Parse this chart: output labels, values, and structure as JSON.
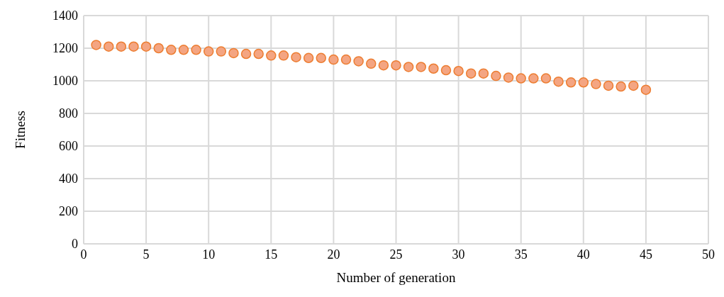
{
  "chart_data": {
    "type": "scatter",
    "xlabel": "Number of generation",
    "ylabel": "Fitness",
    "x": [
      1,
      2,
      3,
      4,
      5,
      6,
      7,
      8,
      9,
      10,
      11,
      12,
      13,
      14,
      15,
      16,
      17,
      18,
      19,
      20,
      21,
      22,
      23,
      24,
      25,
      26,
      27,
      28,
      29,
      30,
      31,
      32,
      33,
      34,
      35,
      36,
      37,
      38,
      39,
      40,
      41,
      42,
      43,
      44,
      45
    ],
    "series": [
      {
        "color": "#f4a582",
        "values": [
          1220,
          1210,
          1210,
          1210,
          1210,
          1200,
          1190,
          1190,
          1190,
          1180,
          1180,
          1170,
          1165,
          1165,
          1155,
          1155,
          1145,
          1140,
          1140,
          1130,
          1130,
          1120,
          1105,
          1095,
          1095,
          1085,
          1085,
          1075,
          1065,
          1060,
          1045,
          1045,
          1030,
          1020,
          1015,
          1015,
          1015,
          995,
          990,
          990,
          980,
          970,
          965,
          970,
          945
        ]
      }
    ],
    "xlim": [
      0,
      50
    ],
    "xticks": [
      0,
      5,
      10,
      15,
      20,
      25,
      30,
      35,
      40,
      45,
      50
    ],
    "ylim": [
      0,
      1400
    ],
    "yticks": [
      0,
      200,
      400,
      600,
      800,
      1000,
      1200,
      1400
    ],
    "grid": true,
    "marker": "circle",
    "legend": false
  }
}
